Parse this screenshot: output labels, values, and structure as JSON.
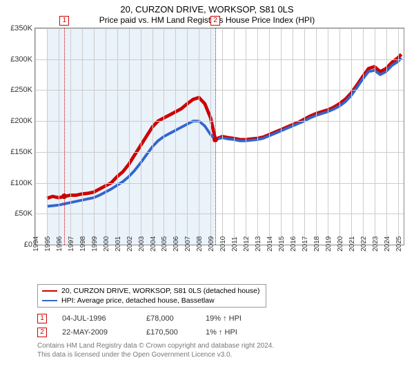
{
  "title": "20, CURZON DRIVE, WORKSOP, S81 0LS",
  "subtitle": "Price paid vs. HM Land Registry's House Price Index (HPI)",
  "chart": {
    "type": "line",
    "xlim": [
      1994,
      2025.5
    ],
    "ylim": [
      0,
      350000
    ],
    "ytick_step": 50000,
    "yticks": [
      "£0",
      "£50K",
      "£100K",
      "£150K",
      "£200K",
      "£250K",
      "£300K",
      "£350K"
    ],
    "xticks": [
      1994,
      1995,
      1996,
      1997,
      1998,
      1999,
      2000,
      2001,
      2002,
      2003,
      2004,
      2005,
      2006,
      2007,
      2008,
      2009,
      2010,
      2011,
      2012,
      2013,
      2014,
      2015,
      2016,
      2017,
      2018,
      2019,
      2020,
      2021,
      2022,
      2023,
      2024,
      2025
    ],
    "background_color": "#ffffff",
    "grid_color": "#cccccc",
    "shade_color": "#eaf2fa",
    "shade_range": [
      1995,
      2009.4
    ],
    "series": [
      {
        "name": "20, CURZON DRIVE, WORKSOP, S81 0LS (detached house)",
        "color": "#cc0000",
        "width": 1.6,
        "data": [
          [
            1995,
            75000
          ],
          [
            1995.5,
            78000
          ],
          [
            1996,
            76000
          ],
          [
            1996.5,
            78000
          ],
          [
            1997,
            80000
          ],
          [
            1997.5,
            80000
          ],
          [
            1998,
            82000
          ],
          [
            1998.5,
            83000
          ],
          [
            1999,
            85000
          ],
          [
            1999.5,
            90000
          ],
          [
            2000,
            95000
          ],
          [
            2000.5,
            100000
          ],
          [
            2001,
            110000
          ],
          [
            2001.5,
            118000
          ],
          [
            2002,
            130000
          ],
          [
            2002.5,
            145000
          ],
          [
            2003,
            160000
          ],
          [
            2003.5,
            175000
          ],
          [
            2004,
            190000
          ],
          [
            2004.5,
            200000
          ],
          [
            2005,
            205000
          ],
          [
            2005.5,
            210000
          ],
          [
            2006,
            215000
          ],
          [
            2006.5,
            220000
          ],
          [
            2007,
            228000
          ],
          [
            2007.5,
            235000
          ],
          [
            2008,
            238000
          ],
          [
            2008.5,
            228000
          ],
          [
            2009,
            205000
          ],
          [
            2009.4,
            170500
          ],
          [
            2010,
            175000
          ],
          [
            2010.5,
            173000
          ],
          [
            2011,
            172000
          ],
          [
            2011.5,
            170000
          ],
          [
            2012,
            170000
          ],
          [
            2012.5,
            171000
          ],
          [
            2013,
            172000
          ],
          [
            2013.5,
            174000
          ],
          [
            2014,
            178000
          ],
          [
            2014.5,
            182000
          ],
          [
            2015,
            186000
          ],
          [
            2015.5,
            190000
          ],
          [
            2016,
            194000
          ],
          [
            2016.5,
            198000
          ],
          [
            2017,
            203000
          ],
          [
            2017.5,
            208000
          ],
          [
            2018,
            212000
          ],
          [
            2018.5,
            215000
          ],
          [
            2019,
            218000
          ],
          [
            2019.5,
            222000
          ],
          [
            2020,
            228000
          ],
          [
            2020.5,
            235000
          ],
          [
            2021,
            245000
          ],
          [
            2021.5,
            258000
          ],
          [
            2022,
            272000
          ],
          [
            2022.5,
            285000
          ],
          [
            2023,
            288000
          ],
          [
            2023.5,
            280000
          ],
          [
            2024,
            285000
          ],
          [
            2024.5,
            295000
          ],
          [
            2025,
            302000
          ],
          [
            2025.3,
            308000
          ]
        ]
      },
      {
        "name": "HPI: Average price, detached house, Bassetlaw",
        "color": "#3366cc",
        "width": 1.3,
        "data": [
          [
            1995,
            62000
          ],
          [
            1995.5,
            63000
          ],
          [
            1996,
            64000
          ],
          [
            1996.5,
            66000
          ],
          [
            1997,
            68000
          ],
          [
            1997.5,
            70000
          ],
          [
            1998,
            72000
          ],
          [
            1998.5,
            74000
          ],
          [
            1999,
            76000
          ],
          [
            1999.5,
            80000
          ],
          [
            2000,
            85000
          ],
          [
            2000.5,
            90000
          ],
          [
            2001,
            96000
          ],
          [
            2001.5,
            102000
          ],
          [
            2002,
            110000
          ],
          [
            2002.5,
            120000
          ],
          [
            2003,
            132000
          ],
          [
            2003.5,
            145000
          ],
          [
            2004,
            158000
          ],
          [
            2004.5,
            168000
          ],
          [
            2005,
            175000
          ],
          [
            2005.5,
            180000
          ],
          [
            2006,
            185000
          ],
          [
            2006.5,
            190000
          ],
          [
            2007,
            195000
          ],
          [
            2007.5,
            200000
          ],
          [
            2008,
            200000
          ],
          [
            2008.5,
            192000
          ],
          [
            2009,
            178000
          ],
          [
            2009.4,
            170000
          ],
          [
            2010,
            173000
          ],
          [
            2010.5,
            171000
          ],
          [
            2011,
            170000
          ],
          [
            2011.5,
            168000
          ],
          [
            2012,
            168000
          ],
          [
            2012.5,
            169000
          ],
          [
            2013,
            170000
          ],
          [
            2013.5,
            172000
          ],
          [
            2014,
            176000
          ],
          [
            2014.5,
            180000
          ],
          [
            2015,
            184000
          ],
          [
            2015.5,
            188000
          ],
          [
            2016,
            192000
          ],
          [
            2016.5,
            196000
          ],
          [
            2017,
            200000
          ],
          [
            2017.5,
            205000
          ],
          [
            2018,
            209000
          ],
          [
            2018.5,
            212000
          ],
          [
            2019,
            215000
          ],
          [
            2019.5,
            219000
          ],
          [
            2020,
            224000
          ],
          [
            2020.5,
            231000
          ],
          [
            2021,
            241000
          ],
          [
            2021.5,
            254000
          ],
          [
            2022,
            268000
          ],
          [
            2022.5,
            280000
          ],
          [
            2023,
            282000
          ],
          [
            2023.5,
            275000
          ],
          [
            2024,
            280000
          ],
          [
            2024.5,
            290000
          ],
          [
            2025,
            296000
          ],
          [
            2025.3,
            302000
          ]
        ]
      }
    ],
    "markers": [
      {
        "n": "1",
        "x": 1996.5,
        "y": 78000,
        "line_color": "#cc0000"
      },
      {
        "n": "2",
        "x": 2009.4,
        "y": 170500,
        "line_color": "#cc0000"
      }
    ]
  },
  "legend": {
    "items": [
      {
        "color": "#cc0000",
        "label": "20, CURZON DRIVE, WORKSOP, S81 0LS (detached house)"
      },
      {
        "color": "#3366cc",
        "label": "HPI: Average price, detached house, Bassetlaw"
      }
    ]
  },
  "transactions": [
    {
      "n": "1",
      "date": "04-JUL-1996",
      "price": "£78,000",
      "pct": "19% ↑ HPI"
    },
    {
      "n": "2",
      "date": "22-MAY-2009",
      "price": "£170,500",
      "pct": "1% ↑ HPI"
    }
  ],
  "footer": {
    "line1": "Contains HM Land Registry data © Crown copyright and database right 2024.",
    "line2": "This data is licensed under the Open Government Licence v3.0."
  }
}
